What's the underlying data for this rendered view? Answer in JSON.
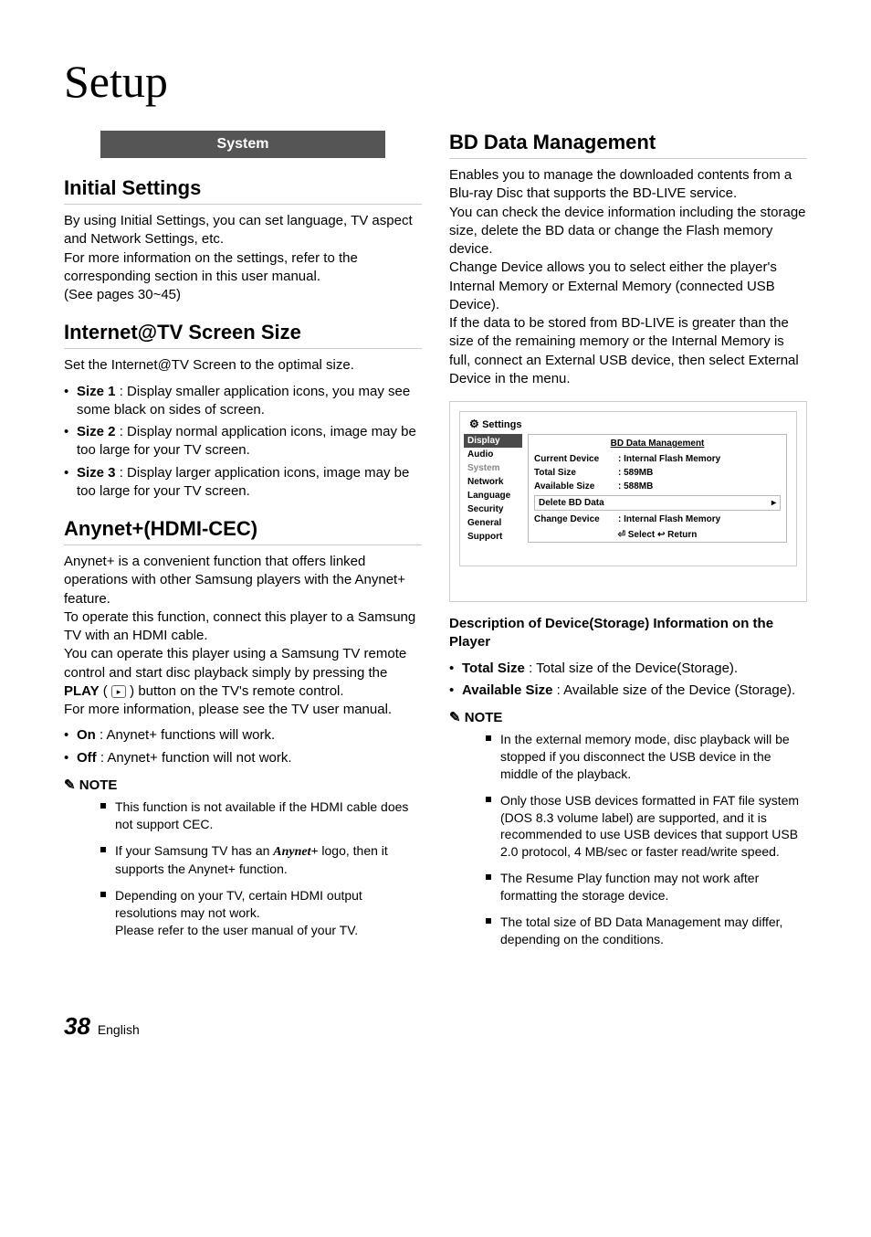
{
  "page": {
    "title": "Setup",
    "footer_number": "38",
    "footer_lang": "English"
  },
  "left": {
    "system_header": "System",
    "initial": {
      "heading": "Initial Settings",
      "p1": "By using Initial Settings, you can set language, TV aspect and Network Settings, etc.",
      "p2": "For more information on the settings, refer to the corresponding section in this user manual.",
      "p3": "(See pages 30~45)"
    },
    "internet": {
      "heading": "Internet@TV Screen Size",
      "p1": "Set the Internet@TV Screen to the optimal size.",
      "items": [
        {
          "term": "Size 1",
          "desc": " : Display smaller application icons, you may see some black on sides of screen."
        },
        {
          "term": "Size 2",
          "desc": " : Display normal application icons, image may be too large for your TV screen."
        },
        {
          "term": "Size 3",
          "desc": " : Display larger application icons, image may be too large for your TV screen."
        }
      ]
    },
    "anynet": {
      "heading": "Anynet+(HDMI-CEC)",
      "p1": "Anynet+ is a convenient function that offers linked operations with other Samsung players with the Anynet+ feature.",
      "p2": "To operate this function, connect this player to a Samsung TV with an HDMI cable.",
      "p3": "You can operate this player using a Samsung TV remote control and start disc playback simply by pressing the ",
      "play_label": "PLAY",
      "p3b": " button on the TV's remote control.",
      "p4": "For more information, please see the TV user manual.",
      "items": [
        {
          "term": "On",
          "desc": " : Anynet+ functions will work."
        },
        {
          "term": "Off",
          "desc": " : Anynet+ function will not work."
        }
      ],
      "note_label": "NOTE",
      "notes": {
        "n1": "This function is not available if the HDMI cable does not support CEC.",
        "n2a": "If your Samsung TV has an ",
        "n2logo": "Anynet+",
        "n2b": " logo, then it supports the Anynet+ function.",
        "n3a": "Depending on your TV, certain HDMI output resolutions may not work.",
        "n3b": "Please refer to the user manual of your TV."
      }
    }
  },
  "right": {
    "bd": {
      "heading": "BD Data Management",
      "p1": "Enables you to manage the downloaded contents from a Blu-ray Disc that supports the BD-LIVE service.",
      "p2": "You can check the device information including the storage size, delete the BD data or change the Flash memory device.",
      "p3": "Change Device allows you to select either the player's Internal Memory or External Memory (connected USB Device).",
      "p4": "If the data to be stored from BD-LIVE is greater than the size of the remaining memory or the Internal Memory is full, connect an External USB device, then select External Device in the menu."
    },
    "panel": {
      "title": "Settings",
      "sidebar": [
        "Display",
        "Audio",
        "System",
        "Network",
        "Language",
        "Security",
        "General",
        "Support"
      ],
      "selected": "Display",
      "dim": "System",
      "detail_title": "BD Data Management",
      "rows": [
        {
          "k": "Current Device",
          "v": ": Internal Flash Memory"
        },
        {
          "k": "Total Size",
          "v": ": 589MB"
        },
        {
          "k": "Available Size",
          "v": ": 588MB"
        }
      ],
      "box1": {
        "k": "Delete BD Data",
        "arrow": "▸"
      },
      "row_after": {
        "k": "Change Device",
        "v": ": Internal Flash Memory"
      },
      "footer": "⏎ Select    ↩ Return"
    },
    "desc_head": "Description of Device(Storage) Information on the Player",
    "desc_items": [
      {
        "term": "Total Size",
        "desc": " : Total size of the Device(Storage)."
      },
      {
        "term": "Available Size",
        "desc": " : Available size of the Device (Storage)."
      }
    ],
    "note_label": "NOTE",
    "notes": [
      "In the external memory mode, disc playback will be stopped if you disconnect the USB device in the middle of the playback.",
      "Only those USB devices formatted in FAT file system (DOS 8.3 volume label) are supported, and it is recommended to use USB devices that support USB 2.0 protocol, 4 MB/sec or faster read/write speed.",
      "The Resume Play function may not work after formatting the storage device.",
      "The total size of BD Data Management may differ, depending on the conditions."
    ]
  }
}
